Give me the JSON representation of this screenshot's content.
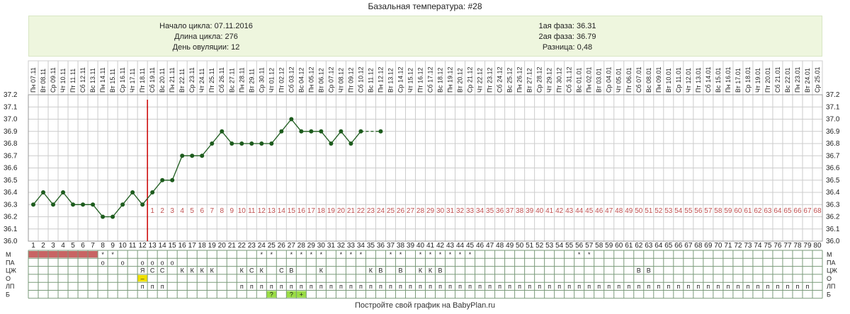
{
  "title": "Базальная температура: #28",
  "info": {
    "left": [
      "Начало цикла: 07.11.2016",
      "Длина цикла: 276",
      "День овуляции: 12"
    ],
    "right": [
      "1ая фаза: 36.31",
      "2ая фаза: 36.79",
      "Разница: 0,48"
    ]
  },
  "footer": "Постройте свой график на BabyPlan.ru",
  "colors": {
    "line": "#1e5c1e",
    "ovulation": "#cc0000",
    "menses": "#c86464",
    "panel": "#eef6de",
    "day_labels": "#c05050",
    "grid": "#cccccc"
  },
  "chart_data": {
    "type": "line",
    "title": "Базальная температура: #28",
    "y_ticks": [
      "36.0",
      "36.1",
      "36.2",
      "36.3",
      "36.4",
      "36.5",
      "36.6",
      "36.7",
      "36.8",
      "36.9",
      "37.0",
      "37.1",
      "37.2"
    ],
    "ylim": [
      36.0,
      37.2
    ],
    "x_days": [
      "1",
      "2",
      "3",
      "4",
      "5",
      "6",
      "7",
      "8",
      "9",
      "10",
      "11",
      "12",
      "13",
      "14",
      "15",
      "16",
      "17",
      "18",
      "19",
      "20",
      "21",
      "22",
      "23",
      "24",
      "25",
      "26",
      "27",
      "28",
      "29",
      "30",
      "31",
      "32",
      "33",
      "34",
      "35",
      "36",
      "37",
      "38",
      "39",
      "40",
      "41",
      "42",
      "43",
      "44",
      "45",
      "46",
      "47",
      "48",
      "49",
      "50",
      "51",
      "52",
      "53",
      "54",
      "55",
      "56",
      "57",
      "58",
      "59",
      "60",
      "61",
      "62",
      "63",
      "64",
      "65",
      "66",
      "67",
      "68",
      "69",
      "70",
      "71",
      "72",
      "73",
      "74",
      "75",
      "76",
      "77",
      "78",
      "79",
      "80"
    ],
    "dates": [
      "Пн 07.11",
      "Вт 08.11",
      "Ср 09.11",
      "Чт 10.11",
      "Пт 11.11",
      "Сб 12.11",
      "Вс 13.11",
      "Пн 14.11",
      "Вт 15.11",
      "Ср 16.11",
      "Чт 17.11",
      "Пт 18.11",
      "Сб 19.11",
      "Вс 20.11",
      "Пн 21.11",
      "Вт 22.11",
      "Ср 23.11",
      "Чт 24.11",
      "Пт 25.11",
      "Сб 26.11",
      "Вс 27.11",
      "Пн 28.11",
      "Вт 29.11",
      "Ср 30.11",
      "Чт 01.12",
      "Пт 02.12",
      "Сб 03.12",
      "Вс 04.12",
      "Пн 05.12",
      "Вт 06.12",
      "Ср 07.12",
      "Чт 08.12",
      "Пт 09.12",
      "Сб 10.12",
      "Вс 11.12",
      "Пн 12.12",
      "Вт 13.12",
      "Ср 14.12",
      "Чт 15.12",
      "Пт 16.12",
      "Сб 17.12",
      "Вс 18.12",
      "Пн 19.12",
      "Вт 20.12",
      "Ср 21.12",
      "Чт 22.12",
      "Пт 23.12",
      "Сб 24.12",
      "Вс 25.12",
      "Пн 26.12",
      "Вт 27.12",
      "Ср 28.12",
      "Чт 29.12",
      "Пт 30.12",
      "Сб 31.12",
      "Вс 01.01",
      "Пн 02.01",
      "Вт 03.01",
      "Ср 04.01",
      "Чт 05.01",
      "Пт 06.01",
      "Сб 07.01",
      "Вс 08.01",
      "Пн 09.01",
      "Вт 10.01",
      "Ср 11.01",
      "Чт 12.01",
      "Пт 13.01",
      "Сб 14.01",
      "Вс 15.01",
      "Пн 16.01",
      "Вт 17.01",
      "Ср 18.01",
      "Чт 19.01",
      "Пт 20.01",
      "Сб 21.01",
      "Вс 22.01",
      "Пн 23.01",
      "Вт 24.01",
      "Ср 25.01"
    ],
    "temps": [
      36.3,
      36.4,
      36.3,
      36.4,
      36.3,
      36.3,
      36.3,
      36.2,
      36.2,
      36.3,
      36.4,
      36.3,
      36.4,
      36.5,
      36.5,
      36.7,
      36.7,
      36.7,
      36.8,
      36.9,
      36.8,
      36.8,
      36.8,
      36.8,
      36.8,
      36.9,
      37.0,
      36.9,
      36.9,
      36.9,
      36.8,
      36.9,
      36.8,
      36.9,
      null,
      36.9
    ],
    "dashed_segment": [
      34,
      36
    ],
    "ovulation_day": 12,
    "post_ovulation_labels": [
      "1",
      "2",
      "3",
      "4",
      "5",
      "6",
      "7",
      "8",
      "9",
      "10",
      "11",
      "12",
      "13",
      "14",
      "15",
      "16",
      "17",
      "18",
      "19",
      "20",
      "21",
      "22",
      "23",
      "24",
      "25",
      "26",
      "27",
      "28",
      "29",
      "30",
      "31",
      "32",
      "33",
      "34",
      "35",
      "36",
      "37",
      "38",
      "39",
      "40",
      "41",
      "42",
      "43",
      "44",
      "45",
      "46",
      "47",
      "48",
      "49",
      "50",
      "51",
      "52",
      "53",
      "54",
      "55",
      "56",
      "57",
      "58",
      "59",
      "60",
      "61",
      "62",
      "63",
      "64",
      "65",
      "66",
      "67",
      "68"
    ],
    "legend_rows": [
      "М",
      "ПА",
      "ЦЖ",
      "О",
      "ЛП",
      "Б"
    ],
    "rows": {
      "M_bar_days": [
        1,
        2,
        3,
        4,
        5,
        6,
        7
      ],
      "M_marks": {
        "8": "*",
        "9": "*",
        "24": "*",
        "25": "*",
        "27": "*",
        "28": "*",
        "29": "*",
        "30": "*",
        "32": "*",
        "33": "*",
        "34": "*",
        "37": "*",
        "38": "*",
        "40": "*",
        "41": "*",
        "42": "*",
        "43": "*",
        "44": "*",
        "45": "*",
        "56": "*",
        "57": "*"
      },
      "PA_marks": {
        "8": "o",
        "10": "o",
        "12": "o",
        "13": "o",
        "14": "o",
        "15": "o"
      },
      "CZ_marks": {
        "12": "Я",
        "13": "С",
        "14": "С",
        "16": "К",
        "17": "К",
        "18": "К",
        "19": "К",
        "22": "К",
        "23": "С",
        "24": "К",
        "26": "С",
        "27": "В",
        "30": "К",
        "35": "К",
        "36": "В",
        "38": "В",
        "40": "К",
        "41": "К",
        "42": "В",
        "62": "В",
        "63": "В"
      },
      "O_marks": {
        "12": "–"
      },
      "LP_marks": {
        "12": "п",
        "13": "п",
        "14": "п",
        "22": "п",
        "23": "п",
        "24": "п",
        "25": "п",
        "26": "п",
        "27": "п",
        "28": "п",
        "29": "п",
        "30": "п",
        "31": "п",
        "32": "п",
        "33": "п",
        "34": "п",
        "35": "п",
        "36": "п",
        "37": "п",
        "38": "п",
        "39": "п",
        "40": "п",
        "41": "п",
        "42": "п",
        "43": "п",
        "44": "п",
        "45": "п",
        "46": "п",
        "47": "п",
        "48": "п",
        "49": "п",
        "50": "п",
        "51": "п",
        "52": "п",
        "53": "п",
        "54": "п",
        "55": "п",
        "56": "п",
        "57": "п",
        "58": "п",
        "59": "п",
        "60": "п",
        "61": "п",
        "62": "п",
        "63": "п",
        "64": "п",
        "65": "п",
        "66": "п",
        "67": "п",
        "68": "п",
        "69": "п",
        "70": "п",
        "71": "п",
        "72": "п",
        "73": "п",
        "74": "п",
        "75": "п",
        "76": "п",
        "77": "п",
        "78": "п",
        "79": "п"
      },
      "B_marks": {
        "25": "?",
        "27": "?",
        "28": "+"
      }
    }
  }
}
